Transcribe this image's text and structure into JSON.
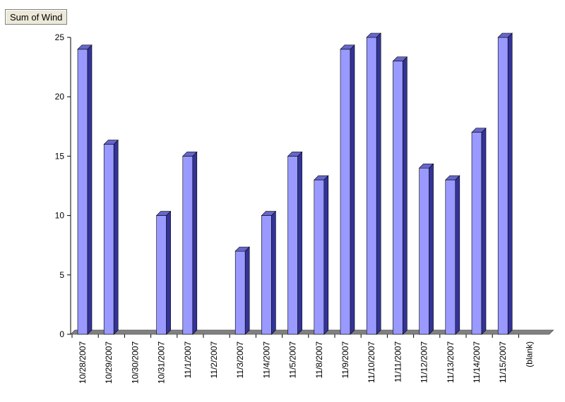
{
  "pivot_field": {
    "label": "Sum of Wind"
  },
  "chart_data": {
    "type": "bar",
    "categories": [
      "10/28/2007",
      "10/29/2007",
      "10/30/2007",
      "10/31/2007",
      "11/1/2007",
      "11/2/2007",
      "11/3/2007",
      "11/4/2007",
      "11/5/2007",
      "11/8/2007",
      "11/9/2007",
      "11/10/2007",
      "11/11/2007",
      "11/12/2007",
      "11/13/2007",
      "11/14/2007",
      "11/15/2007",
      "(blank)"
    ],
    "series": [
      {
        "values": [
          24,
          16,
          null,
          10,
          15,
          null,
          7,
          10,
          15,
          13,
          24,
          25,
          23,
          14,
          13,
          17,
          25,
          null
        ]
      }
    ],
    "ylim": [
      0,
      25
    ],
    "yticks": [
      0,
      5,
      10,
      15,
      20,
      25
    ],
    "grid": false,
    "legend": "none",
    "colors": {
      "bar_front": "#9999ff",
      "bar_side": "#333399",
      "bar_top": "#6666cc",
      "floor": "#808080",
      "axis": "#000000"
    }
  }
}
